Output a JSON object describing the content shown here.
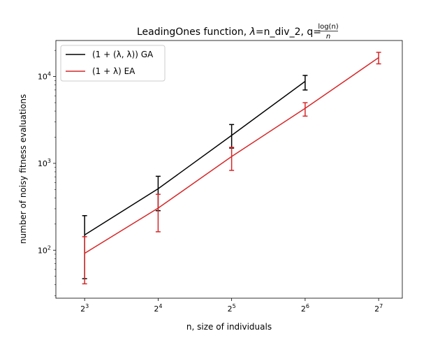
{
  "chart_data": {
    "type": "line",
    "title": {
      "prefix": "LeadingOnes function, ",
      "lambda_symbol": "λ",
      "lambda_value": "=n_div_2, q=",
      "frac_num": "log(n)",
      "frac_den": "n"
    },
    "xlabel": "n, size of individuals",
    "ylabel": "number of noisy fitness evaluations",
    "x_scale": "log2",
    "y_scale": "log10",
    "xlim": [
      6.1,
      160.0
    ],
    "ylim": [
      28,
      26000
    ],
    "x_ticks": [
      {
        "value": 8,
        "base": "2",
        "exp": "3"
      },
      {
        "value": 16,
        "base": "2",
        "exp": "4"
      },
      {
        "value": 32,
        "base": "2",
        "exp": "5"
      },
      {
        "value": 64,
        "base": "2",
        "exp": "6"
      },
      {
        "value": 128,
        "base": "2",
        "exp": "7"
      }
    ],
    "y_ticks": [
      {
        "value": 100,
        "base": "10",
        "exp": "2"
      },
      {
        "value": 1000,
        "base": "10",
        "exp": "3"
      },
      {
        "value": 10000,
        "base": "10",
        "exp": "4"
      }
    ],
    "legend_position": "top-left",
    "series": [
      {
        "name": "(1 + (λ, λ)) GA",
        "color": "#000000",
        "x": [
          8,
          16,
          32,
          64
        ],
        "y": [
          150,
          510,
          2100,
          8800
        ],
        "err_low": [
          47,
          285,
          1500,
          7000
        ],
        "err_high": [
          250,
          710,
          2800,
          10300
        ]
      },
      {
        "name": "(1 + λ) EA",
        "color": "#d62728",
        "x": [
          8,
          16,
          32,
          64,
          128
        ],
        "y": [
          92,
          305,
          1200,
          4300,
          16500
        ],
        "err_low": [
          41,
          163,
          830,
          3500,
          14000
        ],
        "err_high": [
          143,
          440,
          1530,
          5000,
          19000
        ]
      }
    ]
  }
}
